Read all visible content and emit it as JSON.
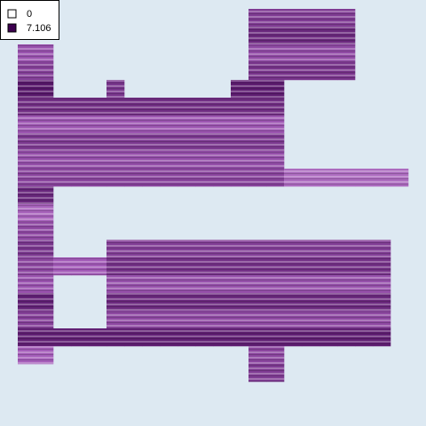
{
  "chart_data": {
    "type": "heatmap",
    "legend": [
      0,
      7.106
    ],
    "colors": [
      "#ffffff",
      "#a35bb8",
      "#3d004f"
    ],
    "z": [
      [
        null,
        null,
        null,
        null,
        null,
        null,
        null,
        null,
        null,
        null,
        null,
        null,
        null,
        4.8,
        4.8,
        4.8,
        4.8,
        4.8,
        4.8,
        null,
        null,
        null
      ],
      [
        null,
        null,
        null,
        null,
        null,
        null,
        null,
        null,
        null,
        null,
        null,
        null,
        null,
        5.5,
        5.5,
        5.5,
        5.5,
        5.5,
        5.5,
        null,
        null,
        null
      ],
      [
        3.9,
        3.9,
        null,
        null,
        null,
        null,
        null,
        null,
        null,
        null,
        null,
        null,
        null,
        4.2,
        4.2,
        4.2,
        4.2,
        4.2,
        4.2,
        null,
        null,
        null
      ],
      [
        4.6,
        4.6,
        null,
        null,
        null,
        null,
        null,
        null,
        null,
        null,
        null,
        null,
        null,
        5.1,
        5.1,
        5.1,
        5.1,
        5.1,
        5.1,
        null,
        null,
        null
      ],
      [
        6.2,
        6.2,
        null,
        null,
        null,
        5.0,
        null,
        null,
        null,
        null,
        null,
        null,
        6.0,
        6.0,
        6.0,
        null,
        null,
        null,
        null,
        null,
        null,
        null
      ],
      [
        5.3,
        5.3,
        5.3,
        5.3,
        5.3,
        5.3,
        5.3,
        5.3,
        5.3,
        5.3,
        5.3,
        5.3,
        5.3,
        5.3,
        5.3,
        null,
        null,
        null,
        null,
        null,
        null,
        null
      ],
      [
        3.8,
        3.8,
        3.8,
        3.8,
        3.8,
        3.8,
        3.8,
        3.8,
        3.8,
        3.8,
        3.8,
        3.8,
        3.8,
        3.8,
        3.8,
        null,
        null,
        null,
        null,
        null,
        null,
        null
      ],
      [
        4.9,
        4.9,
        4.9,
        4.9,
        4.9,
        4.9,
        4.9,
        4.9,
        4.9,
        4.9,
        4.9,
        4.9,
        4.9,
        4.9,
        4.9,
        null,
        null,
        null,
        null,
        null,
        null,
        null
      ],
      [
        4.1,
        4.1,
        4.1,
        4.1,
        4.1,
        4.1,
        4.1,
        4.1,
        4.1,
        4.1,
        4.1,
        4.1,
        4.1,
        4.1,
        4.1,
        null,
        null,
        null,
        null,
        null,
        null,
        null
      ],
      [
        4.5,
        4.5,
        4.5,
        4.5,
        4.5,
        4.5,
        4.5,
        4.5,
        4.5,
        4.5,
        4.5,
        4.5,
        4.5,
        4.5,
        4.5,
        3.2,
        3.2,
        3.2,
        3.2,
        3.2,
        3.2,
        3.2
      ],
      [
        5.6,
        5.6,
        null,
        null,
        null,
        null,
        null,
        null,
        null,
        null,
        null,
        null,
        null,
        null,
        null,
        null,
        null,
        null,
        null,
        null,
        null,
        null
      ],
      [
        3.4,
        3.4,
        null,
        null,
        null,
        null,
        null,
        null,
        null,
        null,
        null,
        null,
        null,
        null,
        null,
        null,
        null,
        null,
        null,
        null,
        null,
        null
      ],
      [
        4.3,
        4.3,
        null,
        null,
        null,
        null,
        null,
        null,
        null,
        null,
        null,
        null,
        null,
        null,
        null,
        null,
        null,
        null,
        null,
        null,
        null,
        null
      ],
      [
        5.0,
        5.0,
        null,
        null,
        null,
        4.7,
        4.7,
        4.7,
        4.7,
        4.7,
        4.7,
        4.7,
        4.7,
        4.7,
        4.7,
        4.7,
        4.7,
        4.7,
        4.7,
        4.7,
        4.7,
        null
      ],
      [
        4.4,
        4.4,
        3.6,
        3.6,
        3.6,
        5.2,
        5.2,
        5.2,
        5.2,
        5.2,
        5.2,
        5.2,
        5.2,
        5.2,
        5.2,
        5.2,
        5.2,
        5.2,
        5.2,
        5.2,
        5.2,
        null
      ],
      [
        3.9,
        3.9,
        null,
        null,
        null,
        4.0,
        4.0,
        4.0,
        4.0,
        4.0,
        4.0,
        4.0,
        4.0,
        4.0,
        4.0,
        4.0,
        4.0,
        4.0,
        4.0,
        4.0,
        4.0,
        null
      ],
      [
        5.8,
        5.8,
        null,
        null,
        null,
        5.5,
        5.5,
        5.5,
        5.5,
        5.5,
        5.5,
        5.5,
        5.5,
        5.5,
        5.5,
        5.5,
        5.5,
        5.5,
        5.5,
        5.5,
        5.5,
        null
      ],
      [
        4.6,
        4.6,
        null,
        null,
        null,
        4.3,
        4.3,
        4.3,
        4.3,
        4.3,
        4.3,
        4.3,
        4.3,
        4.3,
        4.3,
        4.3,
        4.3,
        4.3,
        4.3,
        4.3,
        4.3,
        null
      ],
      [
        5.9,
        5.9,
        5.9,
        5.9,
        5.9,
        5.9,
        5.9,
        5.9,
        5.9,
        5.9,
        5.9,
        5.9,
        5.9,
        5.9,
        5.9,
        5.9,
        5.9,
        5.9,
        5.9,
        5.9,
        5.9,
        null
      ],
      [
        3.5,
        3.5,
        null,
        null,
        null,
        null,
        null,
        null,
        null,
        null,
        null,
        null,
        null,
        4.4,
        4.4,
        null,
        null,
        null,
        null,
        null,
        null,
        null
      ],
      [
        null,
        null,
        null,
        null,
        null,
        null,
        null,
        null,
        null,
        null,
        null,
        null,
        null,
        4.8,
        4.8,
        null,
        null,
        null,
        null,
        null,
        null,
        null
      ]
    ]
  }
}
